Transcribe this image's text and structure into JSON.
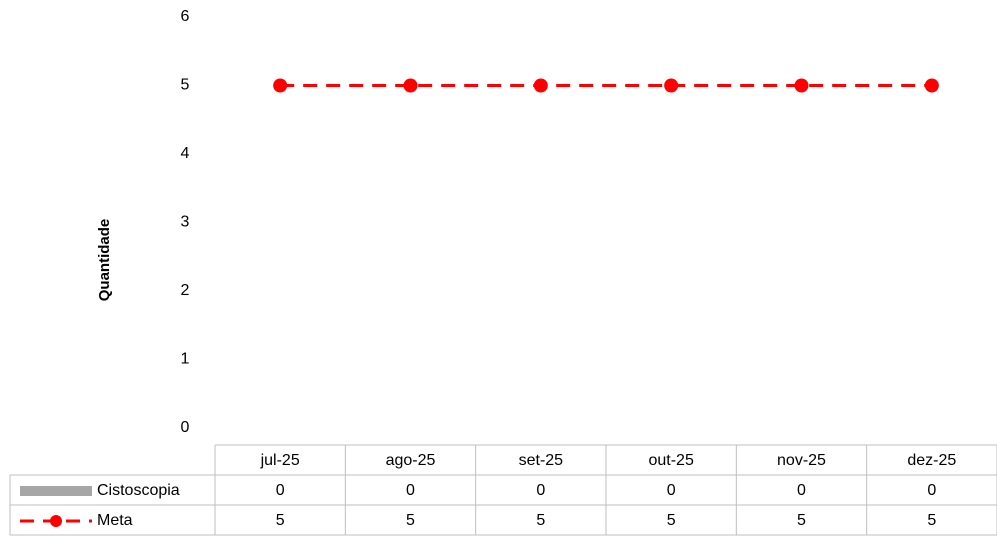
{
  "chart_data": {
    "type": "combo",
    "y_label": "Quantidade",
    "categories": [
      "jul-25",
      "ago-25",
      "set-25",
      "out-25",
      "nov-25",
      "dez-25"
    ],
    "series": [
      {
        "name": "Cistoscopia",
        "type": "bar",
        "color": "#a6a6a6",
        "values": [
          0,
          0,
          0,
          0,
          0,
          0
        ]
      },
      {
        "name": "Meta",
        "type": "line",
        "color": "#ff0000",
        "dashed": true,
        "marker": true,
        "values": [
          5,
          5,
          5,
          5,
          5,
          5
        ]
      }
    ],
    "ylim": [
      0,
      6
    ],
    "yticks": [
      0,
      1,
      2,
      3,
      4,
      5,
      6
    ],
    "grid": false,
    "data_table": true
  }
}
